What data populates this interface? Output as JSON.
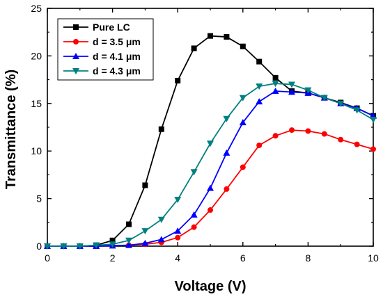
{
  "chart_data": {
    "type": "line",
    "title": "",
    "xlabel": "Voltage (V)",
    "ylabel": "Transmittance (%)",
    "xlim": [
      0,
      10
    ],
    "ylim": [
      0,
      25
    ],
    "x_ticks": [
      "0",
      "2",
      "4",
      "6",
      "8",
      "10"
    ],
    "y_ticks": [
      "0",
      "5",
      "10",
      "15",
      "20",
      "25"
    ],
    "grid": false,
    "legend_position": "top-left",
    "x": [
      0,
      0.5,
      1,
      1.5,
      2,
      2.5,
      3,
      3.5,
      4,
      4.5,
      5,
      5.5,
      6,
      6.5,
      7,
      7.5,
      8,
      8.5,
      9,
      9.5,
      10
    ],
    "series": [
      {
        "name": "Pure LC",
        "color": "#000000",
        "marker": "square",
        "values": [
          0,
          0,
          0,
          0.1,
          0.6,
          2.3,
          6.4,
          12.3,
          17.4,
          20.8,
          22.1,
          22.0,
          21.0,
          19.4,
          17.7,
          16.3,
          16.1,
          15.6,
          15.1,
          14.5,
          13.7
        ]
      },
      {
        "name": "d = 3.5 μm",
        "color": "#ff0000",
        "marker": "circle",
        "values": [
          0,
          0,
          0,
          0,
          0.05,
          0.1,
          0.2,
          0.4,
          0.9,
          2.0,
          3.8,
          6.0,
          8.3,
          10.6,
          11.6,
          12.2,
          12.1,
          11.8,
          11.2,
          10.7,
          10.2
        ]
      },
      {
        "name": "d = 4.1 μm",
        "color": "#0000ff",
        "marker": "triangle-up",
        "values": [
          0,
          0,
          0,
          0,
          0.05,
          0.1,
          0.3,
          0.7,
          1.6,
          3.3,
          6.1,
          9.8,
          13.0,
          15.2,
          16.3,
          16.2,
          16.1,
          15.6,
          15.0,
          14.5,
          13.7
        ]
      },
      {
        "name": "d = 4.3 μm",
        "color": "#008080",
        "marker": "triangle-down",
        "values": [
          0,
          0,
          0,
          0.1,
          0.2,
          0.6,
          1.6,
          2.8,
          4.9,
          7.8,
          10.8,
          13.4,
          15.6,
          16.8,
          17.1,
          17.0,
          16.4,
          15.6,
          15.0,
          14.3,
          13.3
        ]
      }
    ]
  }
}
